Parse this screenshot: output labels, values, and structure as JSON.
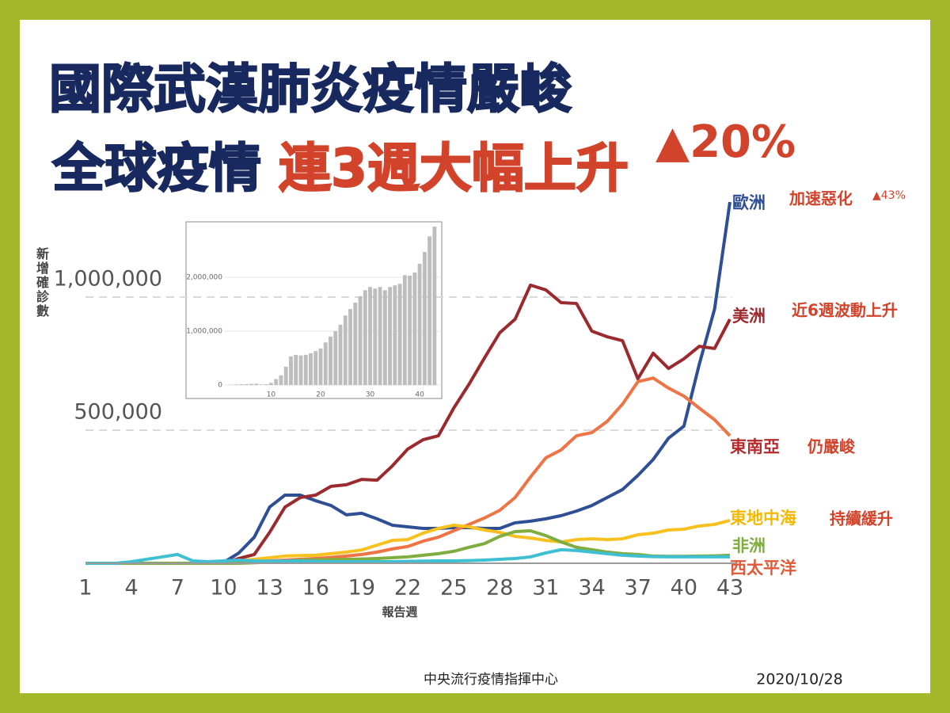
{
  "slide": {
    "title_line1": "國際武漢肺炎疫情嚴峻",
    "title_line2_a": "全球疫情",
    "title_line2_b": "連3週大幅上升",
    "title_badge": "▲20%",
    "footer_org": "中央流行疫情指揮中心",
    "footer_date": "2020/10/28"
  },
  "chart_data": [
    {
      "type": "line",
      "y_label": "新增確診數",
      "x_label": "報告週",
      "x": [
        1,
        2,
        3,
        4,
        5,
        6,
        7,
        8,
        9,
        10,
        11,
        12,
        13,
        14,
        15,
        16,
        17,
        18,
        19,
        20,
        21,
        22,
        23,
        24,
        25,
        26,
        27,
        28,
        29,
        30,
        31,
        32,
        33,
        34,
        35,
        36,
        37,
        38,
        39,
        40,
        41,
        42,
        43
      ],
      "xlim": [
        1,
        43
      ],
      "xticks": [
        1,
        4,
        7,
        10,
        13,
        16,
        19,
        22,
        25,
        28,
        31,
        34,
        37,
        40,
        43
      ],
      "ylim": [
        0,
        1400000
      ],
      "yticks": [
        {
          "value": 500000,
          "label": "500,000"
        },
        {
          "value": 1000000,
          "label": "1,000,000"
        }
      ],
      "grid": true,
      "series": [
        {
          "name": "歐洲",
          "color": "#2f4f95",
          "values": [
            0,
            0,
            0,
            0,
            0,
            0,
            0,
            0,
            0,
            3000,
            39000,
            98000,
            211000,
            256000,
            256000,
            235000,
            217000,
            182000,
            188000,
            167000,
            143000,
            137000,
            131000,
            131000,
            134000,
            134000,
            131000,
            131000,
            152000,
            158000,
            167000,
            179000,
            196000,
            217000,
            247000,
            277000,
            330000,
            390000,
            470000,
            515000,
            747000,
            955000,
            1357000
          ]
        },
        {
          "name": "美洲",
          "color": "#9b2a2e",
          "values": [
            0,
            0,
            0,
            0,
            0,
            0,
            0,
            0,
            0,
            0,
            18000,
            33000,
            116000,
            211000,
            247000,
            256000,
            289000,
            295000,
            315000,
            312000,
            366000,
            429000,
            464000,
            479000,
            583000,
            673000,
            771000,
            866000,
            917000,
            1045000,
            1027000,
            979000,
            976000,
            872000,
            851000,
            836000,
            693000,
            789000,
            732000,
            768000,
            815000,
            807000,
            917000
          ]
        },
        {
          "name": "東南亞",
          "color": "#ee7446",
          "values": [
            0,
            0,
            0,
            0,
            0,
            0,
            0,
            0,
            0,
            0,
            2000,
            5000,
            9000,
            12000,
            15000,
            18000,
            22000,
            27000,
            33000,
            42000,
            54000,
            63000,
            83000,
            98000,
            122000,
            146000,
            170000,
            199000,
            247000,
            324000,
            396000,
            426000,
            479000,
            491000,
            533000,
            598000,
            682000,
            696000,
            658000,
            628000,
            583000,
            539000,
            479000
          ]
        },
        {
          "name": "東地中海",
          "color": "#f8c11f",
          "values": [
            0,
            0,
            0,
            0,
            0,
            0,
            0,
            0,
            0,
            3000,
            9000,
            15000,
            21000,
            27000,
            29000,
            30000,
            36000,
            42000,
            50000,
            68000,
            86000,
            89000,
            113000,
            131000,
            143000,
            137000,
            125000,
            116000,
            101000,
            95000,
            86000,
            80000,
            89000,
            92000,
            89000,
            92000,
            107000,
            113000,
            125000,
            128000,
            140000,
            146000,
            161000
          ]
        },
        {
          "name": "非洲",
          "color": "#80ad3f",
          "values": [
            0,
            0,
            0,
            0,
            0,
            0,
            0,
            0,
            0,
            0,
            0,
            2000,
            5000,
            8000,
            12000,
            13000,
            14000,
            15000,
            16000,
            18000,
            21000,
            24000,
            30000,
            36000,
            45000,
            60000,
            74000,
            101000,
            119000,
            122000,
            104000,
            80000,
            60000,
            51000,
            42000,
            36000,
            33000,
            27000,
            26000,
            26000,
            27000,
            28000,
            30000
          ]
        },
        {
          "name": "西太平洋",
          "color": "#3fbfd2",
          "values": [
            0,
            0,
            0,
            6000,
            15000,
            24000,
            33000,
            9000,
            6000,
            9000,
            12000,
            9000,
            8000,
            8000,
            8000,
            7000,
            6000,
            6000,
            6000,
            6000,
            6000,
            7000,
            8000,
            9000,
            9000,
            10000,
            12000,
            15000,
            18000,
            24000,
            39000,
            51000,
            48000,
            42000,
            36000,
            30000,
            27000,
            25000,
            24000,
            24000,
            24000,
            24000,
            24000
          ]
        }
      ],
      "annotations": [
        "加速惡化",
        "▲43%",
        "近6週波動上升",
        "仍嚴峻",
        "持續緩升"
      ]
    },
    {
      "type": "bar",
      "color": "#bdbdbd",
      "x": [
        1,
        2,
        3,
        4,
        5,
        6,
        7,
        8,
        9,
        10,
        11,
        12,
        13,
        14,
        15,
        16,
        17,
        18,
        19,
        20,
        21,
        22,
        23,
        24,
        25,
        26,
        27,
        28,
        29,
        30,
        31,
        32,
        33,
        34,
        35,
        36,
        37,
        38,
        39,
        40,
        41,
        42,
        43
      ],
      "values": [
        0,
        5000,
        10000,
        15000,
        15000,
        20000,
        25000,
        10000,
        15000,
        40000,
        110000,
        180000,
        340000,
        530000,
        560000,
        550000,
        560000,
        590000,
        630000,
        680000,
        790000,
        900000,
        1000000,
        1120000,
        1290000,
        1410000,
        1530000,
        1650000,
        1760000,
        1820000,
        1790000,
        1820000,
        1760000,
        1820000,
        1850000,
        1880000,
        2040000,
        2030000,
        2090000,
        2250000,
        2470000,
        2760000,
        2940000
      ],
      "xlim": [
        0.5,
        43.5
      ],
      "xticks": [
        10,
        20,
        30,
        40
      ],
      "ylim": [
        0,
        3000000
      ],
      "yticks": [
        0,
        {
          "value": 1000000,
          "label": "1,000,000"
        },
        {
          "value": 2000000,
          "label": "2,000,000"
        }
      ],
      "grid": true
    }
  ]
}
